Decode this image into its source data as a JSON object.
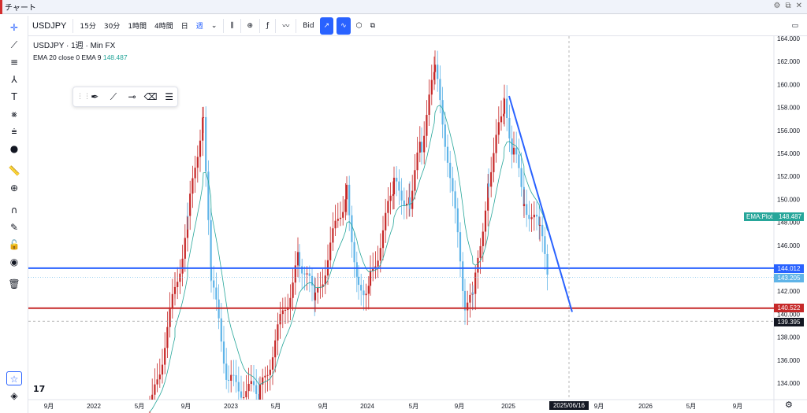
{
  "window": {
    "title": "チャート",
    "controls": [
      "⚙",
      "⧉",
      "✕"
    ]
  },
  "toolbar": {
    "symbol": "USDJPY",
    "timeframes": [
      "15分",
      "30分",
      "1時間",
      "4時間",
      "日",
      "週"
    ],
    "active_timeframe": "週",
    "price_source": "Bid",
    "icons": [
      "candle-style-icon",
      "add-icon",
      "indicator-icon",
      "compare-icon",
      "line-tool-icon",
      "wave-icon",
      "template-icon",
      "layout-icon"
    ]
  },
  "legend": {
    "title": "USDJPY · 1週 · Min FX",
    "indicator": "EMA 20 close 0 EMA 9",
    "indicator_value": "148.487"
  },
  "price_axis": {
    "ticks": [
      "164.000",
      "162.000",
      "160.000",
      "158.000",
      "156.000",
      "154.000",
      "152.000",
      "150.000",
      "148.000",
      "146.000",
      "144.000",
      "142.000",
      "140.000",
      "138.000",
      "136.000",
      "134.000"
    ],
    "tags": [
      {
        "label": "EMA:Plot",
        "value": "148.487",
        "color": "#26a69a"
      },
      {
        "value": "144.012",
        "color": "#2962ff"
      },
      {
        "value": "143.205",
        "color": "#5fb4e8"
      },
      {
        "value": "140.522",
        "color": "#c62828"
      },
      {
        "value": "139.395",
        "color": "#131722"
      }
    ]
  },
  "time_axis": {
    "labels": [
      "9月",
      "2022",
      "5月",
      "9月",
      "2023",
      "5月",
      "9月",
      "2024",
      "5月",
      "9月",
      "2025",
      "9月",
      "2026",
      "5月",
      "9月"
    ],
    "crosshair_date": "2025/06/16"
  },
  "chart_data": {
    "type": "candlestick",
    "symbol": "USDJPY",
    "interval": "1週",
    "ylim": [
      133,
      165
    ],
    "horizontal_lines": [
      {
        "price": 144.012,
        "color": "#2962ff"
      },
      {
        "price": 140.522,
        "color": "#c62828"
      }
    ],
    "trendline": {
      "from": {
        "date": "2025-01",
        "price": 159
      },
      "to": {
        "date": "2025-06",
        "price": 140.2
      },
      "color": "#2962ff"
    },
    "crosshair": {
      "date": "2025/06/16",
      "price": 139.395
    }
  }
}
